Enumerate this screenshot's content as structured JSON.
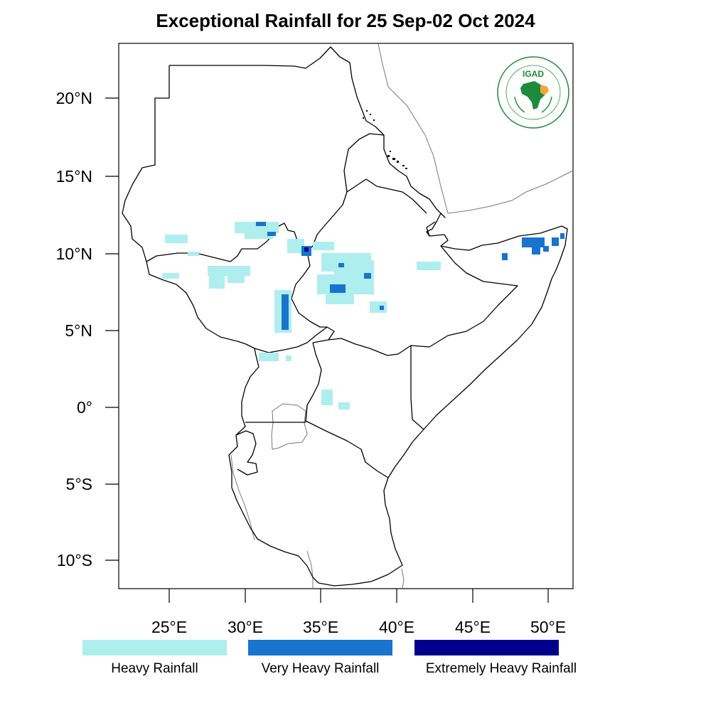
{
  "title": "Exceptional Rainfall for 25 Sep-02 Oct 2024",
  "axes": {
    "lat_ticks": [
      "20°N",
      "15°N",
      "10°N",
      "5°N",
      "0°",
      "5°S",
      "10°S"
    ],
    "lon_ticks": [
      "25°E",
      "30°E",
      "35°E",
      "40°E",
      "45°E",
      "50°E"
    ]
  },
  "legend": {
    "items": [
      {
        "label": "Heavy Rainfall",
        "color": "#aeeeee"
      },
      {
        "label": "Very Heavy Rainfall",
        "color": "#1874cd"
      },
      {
        "label": "Extremely Heavy Rainfall",
        "color": "#00008b"
      }
    ]
  },
  "logo": {
    "text": "IGAD",
    "ring_text": "INTERGOVERNMENTAL AUTHORITY ON DEVELOPMENT • AUTORITE INTERGOUVERNEMENTALE POUR LE DEVELOPPEMENT",
    "colors": {
      "green": "#1e8a3c",
      "orange": "#f2a73b"
    }
  },
  "colors": {
    "heavy": "#aeeeee",
    "very_heavy": "#1874cd",
    "extreme": "#00008b",
    "border": "#000000",
    "lake": "#555555"
  }
}
